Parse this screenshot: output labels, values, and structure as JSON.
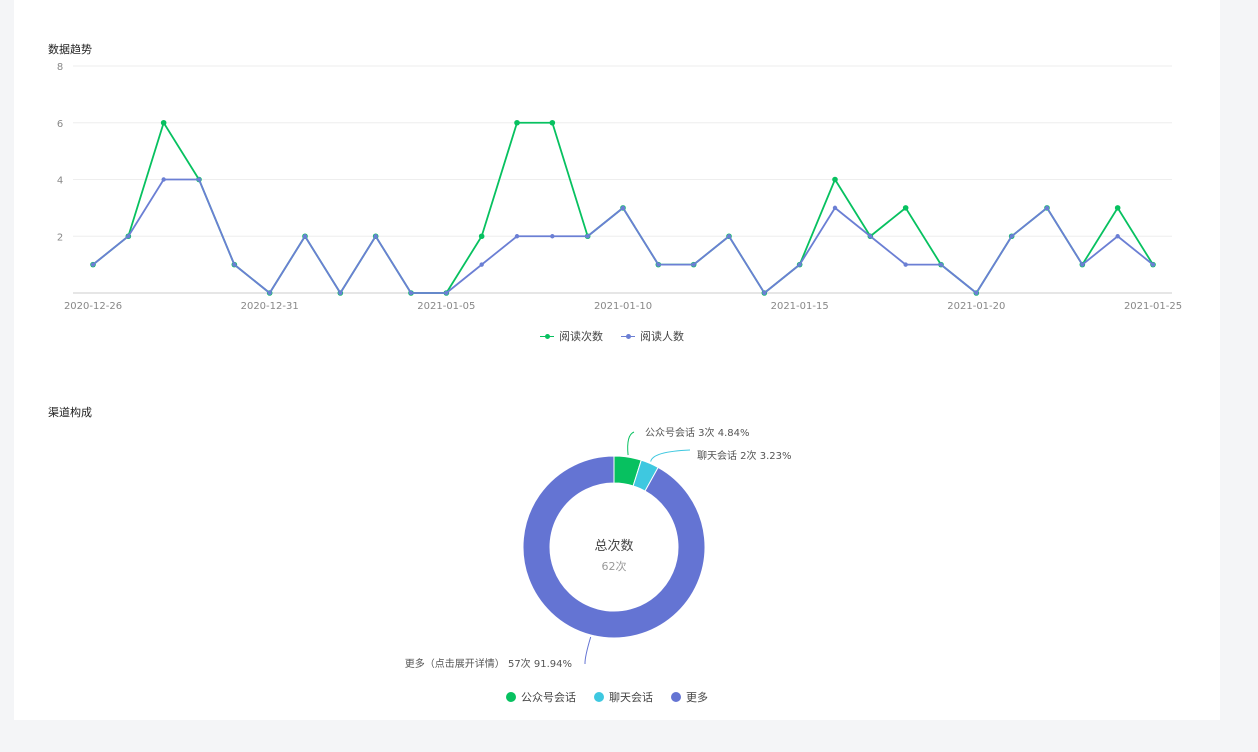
{
  "trend": {
    "title": "数据趋势",
    "legend": [
      "阅读次数",
      "阅读人数"
    ]
  },
  "channel": {
    "title": "渠道构成",
    "center_title": "总次数",
    "center_value": "62次",
    "labels": [
      "公众号会话 3次 4.84%",
      "聊天会话 2次 3.23%",
      "更多（点击展开详情） 57次 91.94%"
    ],
    "legend": [
      "公众号会话",
      "聊天会话",
      "更多"
    ]
  },
  "chart_data": [
    {
      "type": "line",
      "title": "数据趋势",
      "x": [
        "2020-12-26",
        "2020-12-27",
        "2020-12-28",
        "2020-12-29",
        "2020-12-30",
        "2020-12-31",
        "2021-01-01",
        "2021-01-02",
        "2021-01-03",
        "2021-01-04",
        "2021-01-05",
        "2021-01-06",
        "2021-01-07",
        "2021-01-08",
        "2021-01-09",
        "2021-01-10",
        "2021-01-11",
        "2021-01-12",
        "2021-01-13",
        "2021-01-14",
        "2021-01-15",
        "2021-01-16",
        "2021-01-17",
        "2021-01-18",
        "2021-01-19",
        "2021-01-20",
        "2021-01-21",
        "2021-01-22",
        "2021-01-23",
        "2021-01-24",
        "2021-01-25"
      ],
      "x_tick_labels": [
        "2020-12-26",
        "2020-12-31",
        "2021-01-05",
        "2021-01-10",
        "2021-01-15",
        "2021-01-20",
        "2021-01-25"
      ],
      "y_tick_labels": [
        "2",
        "4",
        "6",
        "8"
      ],
      "ylim": [
        0,
        8
      ],
      "grid": true,
      "legend_position": "bottom-center",
      "series": [
        {
          "name": "阅读次数",
          "color": "#07c160",
          "values": [
            1,
            2,
            6,
            4,
            1,
            0,
            2,
            0,
            2,
            0,
            0,
            2,
            6,
            6,
            2,
            3,
            1,
            1,
            2,
            0,
            1,
            4,
            2,
            3,
            1,
            0,
            2,
            3,
            1,
            3,
            1
          ]
        },
        {
          "name": "阅读人数",
          "color": "#6b7fd4",
          "values": [
            1,
            2,
            4,
            4,
            1,
            0,
            2,
            0,
            2,
            0,
            0,
            1,
            2,
            2,
            2,
            3,
            1,
            1,
            2,
            0,
            1,
            3,
            2,
            1,
            1,
            0,
            2,
            3,
            1,
            2,
            1
          ]
        }
      ]
    },
    {
      "type": "pie",
      "title": "渠道构成",
      "donut": true,
      "total": 62,
      "slices": [
        {
          "name": "公众号会话",
          "value": 3,
          "percent": 4.84,
          "color": "#07c160"
        },
        {
          "name": "聊天会话",
          "value": 2,
          "percent": 3.23,
          "color": "#3ec8e0"
        },
        {
          "name": "更多",
          "value": 57,
          "percent": 91.94,
          "color": "#6474d3"
        }
      ],
      "legend_position": "bottom-center"
    }
  ]
}
